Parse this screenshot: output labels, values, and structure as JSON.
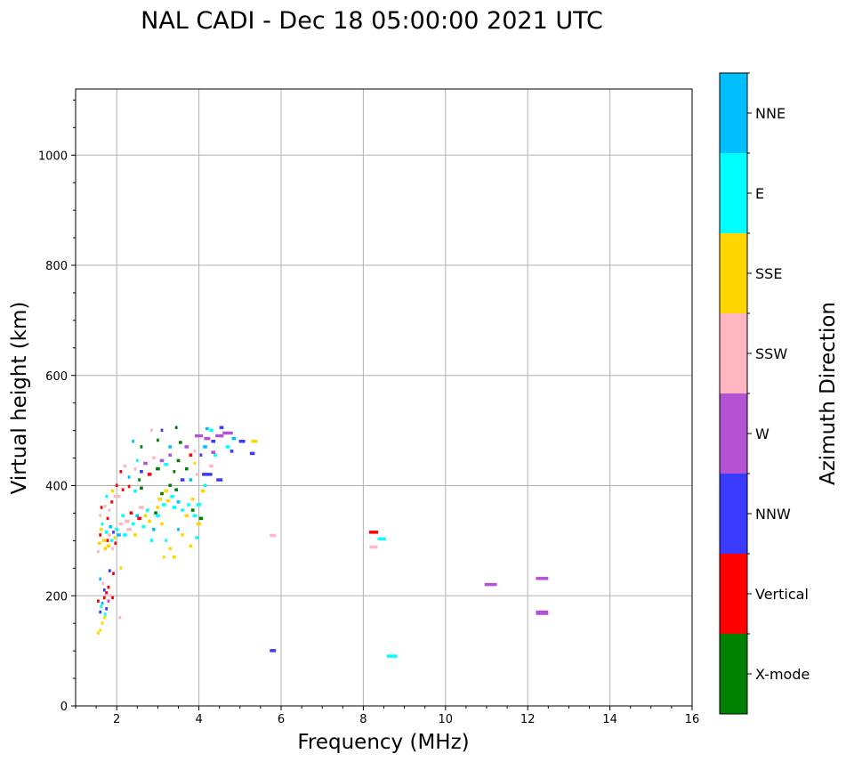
{
  "chart_data": {
    "type": "scatter",
    "title": "NAL CADI - Dec 18 05:00:00 2021 UTC",
    "xlabel": "Frequency (MHz)",
    "ylabel": "Virtual height (km)",
    "xlim": [
      1,
      16
    ],
    "ylim": [
      0,
      1120
    ],
    "xticks": [
      2,
      4,
      6,
      8,
      10,
      12,
      14,
      16
    ],
    "yticks": [
      0,
      200,
      400,
      600,
      800,
      1000
    ],
    "grid": true,
    "colorbar": {
      "label": "Azimuth Direction",
      "categories": [
        "X-mode",
        "Vertical",
        "NNW",
        "W",
        "SSW",
        "SSE",
        "E",
        "NNE"
      ],
      "colors": [
        "#008000",
        "#ff0000",
        "#3a3aff",
        "#b452d4",
        "#ffb6c1",
        "#ffd700",
        "#00ffff",
        "#00bfff"
      ]
    },
    "point_format": [
      "freq_MHz",
      "height_km",
      "direction_index",
      "width_MHz"
    ],
    "points": [
      [
        1.55,
        132,
        5,
        0.06
      ],
      [
        1.6,
        137,
        5,
        0.06
      ],
      [
        1.65,
        150,
        5,
        0.06
      ],
      [
        1.7,
        160,
        5,
        0.06
      ],
      [
        1.6,
        170,
        2,
        0.06
      ],
      [
        1.62,
        180,
        6,
        0.06
      ],
      [
        1.55,
        190,
        1,
        0.06
      ],
      [
        1.7,
        196,
        1,
        0.06
      ],
      [
        1.75,
        205,
        1,
        0.06
      ],
      [
        1.8,
        215,
        1,
        0.06
      ],
      [
        1.7,
        210,
        2,
        0.06
      ],
      [
        1.85,
        200,
        4,
        0.06
      ],
      [
        1.65,
        186,
        7,
        0.06
      ],
      [
        1.75,
        176,
        2,
        0.06
      ],
      [
        1.8,
        190,
        3,
        0.06
      ],
      [
        1.72,
        166,
        6,
        0.06
      ],
      [
        1.6,
        230,
        7,
        0.06
      ],
      [
        1.67,
        222,
        4,
        0.06
      ],
      [
        1.83,
        245,
        2,
        0.06
      ],
      [
        1.9,
        196,
        1,
        0.06
      ],
      [
        2.08,
        160,
        4,
        0.06
      ],
      [
        2.1,
        250,
        5,
        0.06
      ],
      [
        1.92,
        240,
        1,
        0.06
      ],
      [
        1.55,
        280,
        4,
        0.06
      ],
      [
        1.58,
        295,
        5,
        0.08
      ],
      [
        1.6,
        310,
        1,
        0.06
      ],
      [
        1.62,
        320,
        5,
        0.08
      ],
      [
        1.65,
        330,
        6,
        0.06
      ],
      [
        1.6,
        345,
        4,
        0.06
      ],
      [
        1.63,
        360,
        1,
        0.06
      ],
      [
        1.7,
        300,
        5,
        0.1
      ],
      [
        1.72,
        285,
        5,
        0.08
      ],
      [
        1.75,
        315,
        6,
        0.08
      ],
      [
        1.78,
        300,
        1,
        0.06
      ],
      [
        1.8,
        290,
        5,
        0.1
      ],
      [
        1.82,
        310,
        4,
        0.08
      ],
      [
        1.85,
        325,
        7,
        0.08
      ],
      [
        1.88,
        300,
        6,
        0.08
      ],
      [
        1.9,
        285,
        4,
        0.06
      ],
      [
        1.92,
        315,
        2,
        0.06
      ],
      [
        1.95,
        305,
        5,
        0.06
      ],
      [
        1.97,
        295,
        1,
        0.06
      ],
      [
        2.0,
        320,
        6,
        0.08
      ],
      [
        1.78,
        340,
        1,
        0.06
      ],
      [
        1.82,
        355,
        4,
        0.06
      ],
      [
        1.88,
        370,
        1,
        0.06
      ],
      [
        1.9,
        390,
        5,
        0.08
      ],
      [
        1.95,
        380,
        4,
        0.06
      ],
      [
        1.75,
        380,
        6,
        0.06
      ],
      [
        1.72,
        362,
        4,
        0.06
      ],
      [
        2.05,
        310,
        7,
        0.1
      ],
      [
        2.1,
        330,
        4,
        0.1
      ],
      [
        2.15,
        345,
        6,
        0.08
      ],
      [
        2.2,
        310,
        6,
        0.1
      ],
      [
        2.25,
        335,
        4,
        0.12
      ],
      [
        2.3,
        320,
        4,
        0.12
      ],
      [
        2.35,
        350,
        1,
        0.08
      ],
      [
        2.4,
        330,
        6,
        0.08
      ],
      [
        2.45,
        310,
        5,
        0.08
      ],
      [
        2.5,
        345,
        7,
        0.08
      ],
      [
        2.55,
        340,
        1,
        0.1
      ],
      [
        2.6,
        360,
        4,
        0.12
      ],
      [
        2.65,
        325,
        6,
        0.08
      ],
      [
        2.7,
        345,
        5,
        0.08
      ],
      [
        2.75,
        355,
        6,
        0.08
      ],
      [
        2.8,
        335,
        5,
        0.08
      ],
      [
        2.85,
        300,
        6,
        0.08
      ],
      [
        2.9,
        320,
        7,
        0.08
      ],
      [
        2.95,
        350,
        0,
        0.08
      ],
      [
        3.0,
        360,
        5,
        0.08
      ],
      [
        2.0,
        400,
        1,
        0.06
      ],
      [
        2.05,
        380,
        4,
        0.08
      ],
      [
        2.15,
        392,
        1,
        0.06
      ],
      [
        2.3,
        398,
        1,
        0.06
      ],
      [
        2.45,
        390,
        6,
        0.08
      ],
      [
        2.6,
        395,
        0,
        0.08
      ],
      [
        3.05,
        375,
        5,
        0.1
      ],
      [
        3.1,
        385,
        0,
        0.08
      ],
      [
        3.15,
        365,
        6,
        0.1
      ],
      [
        3.2,
        390,
        5,
        0.1
      ],
      [
        3.25,
        372,
        5,
        0.1
      ],
      [
        3.3,
        400,
        0,
        0.08
      ],
      [
        3.35,
        380,
        6,
        0.1
      ],
      [
        3.4,
        360,
        6,
        0.1
      ],
      [
        3.45,
        392,
        0,
        0.08
      ],
      [
        3.5,
        370,
        7,
        0.08
      ],
      [
        3.6,
        355,
        6,
        0.08
      ],
      [
        3.7,
        345,
        5,
        0.1
      ],
      [
        3.75,
        365,
        6,
        0.08
      ],
      [
        3.85,
        355,
        0,
        0.08
      ],
      [
        3.9,
        345,
        6,
        0.1
      ],
      [
        4.0,
        330,
        5,
        0.12
      ],
      [
        4.05,
        340,
        0,
        0.1
      ],
      [
        3.1,
        330,
        5,
        0.08
      ],
      [
        3.2,
        300,
        6,
        0.06
      ],
      [
        3.3,
        285,
        5,
        0.08
      ],
      [
        3.4,
        270,
        5,
        0.08
      ],
      [
        3.6,
        310,
        5,
        0.08
      ],
      [
        3.8,
        290,
        5,
        0.08
      ],
      [
        3.15,
        270,
        5,
        0.06
      ],
      [
        3.0,
        345,
        6,
        0.1
      ],
      [
        3.5,
        320,
        7,
        0.06
      ],
      [
        3.95,
        305,
        6,
        0.08
      ],
      [
        4.0,
        365,
        6,
        0.12
      ],
      [
        3.85,
        375,
        5,
        0.08
      ],
      [
        2.1,
        425,
        1,
        0.06
      ],
      [
        2.2,
        435,
        4,
        0.08
      ],
      [
        2.3,
        415,
        7,
        0.06
      ],
      [
        2.45,
        430,
        4,
        0.06
      ],
      [
        2.5,
        445,
        6,
        0.06
      ],
      [
        2.55,
        410,
        0,
        0.06
      ],
      [
        2.6,
        425,
        2,
        0.08
      ],
      [
        2.7,
        440,
        3,
        0.1
      ],
      [
        2.8,
        420,
        1,
        0.1
      ],
      [
        2.9,
        450,
        4,
        0.08
      ],
      [
        3.0,
        430,
        0,
        0.1
      ],
      [
        3.1,
        445,
        3,
        0.1
      ],
      [
        3.2,
        438,
        6,
        0.1
      ],
      [
        3.3,
        455,
        3,
        0.08
      ],
      [
        3.4,
        425,
        0,
        0.06
      ],
      [
        3.5,
        445,
        0,
        0.08
      ],
      [
        3.6,
        410,
        2,
        0.1
      ],
      [
        3.7,
        430,
        0,
        0.08
      ],
      [
        3.8,
        410,
        7,
        0.08
      ],
      [
        3.9,
        440,
        5,
        0.06
      ],
      [
        3.95,
        420,
        4,
        0.06
      ],
      [
        2.4,
        480,
        7,
        0.06
      ],
      [
        2.6,
        470,
        0,
        0.06
      ],
      [
        2.85,
        500,
        4,
        0.06
      ],
      [
        3.1,
        500,
        2,
        0.06
      ],
      [
        3.0,
        482,
        0,
        0.06
      ],
      [
        3.3,
        470,
        7,
        0.08
      ],
      [
        3.45,
        505,
        0,
        0.06
      ],
      [
        3.55,
        478,
        0,
        0.08
      ],
      [
        3.7,
        470,
        3,
        0.1
      ],
      [
        3.8,
        455,
        1,
        0.08
      ],
      [
        3.9,
        462,
        4,
        0.06
      ],
      [
        4.0,
        490,
        3,
        0.2
      ],
      [
        4.05,
        455,
        2,
        0.06
      ],
      [
        4.15,
        470,
        7,
        0.1
      ],
      [
        4.2,
        485,
        3,
        0.15
      ],
      [
        4.3,
        500,
        6,
        0.1
      ],
      [
        4.35,
        480,
        2,
        0.1
      ],
      [
        4.5,
        490,
        3,
        0.2
      ],
      [
        4.55,
        505,
        2,
        0.1
      ],
      [
        4.7,
        495,
        3,
        0.25
      ],
      [
        4.7,
        470,
        6,
        0.1
      ],
      [
        4.85,
        485,
        7,
        0.1
      ],
      [
        5.05,
        480,
        2,
        0.15
      ],
      [
        5.35,
        480,
        5,
        0.15
      ],
      [
        5.3,
        458,
        2,
        0.12
      ],
      [
        4.8,
        462,
        2,
        0.08
      ],
      [
        4.4,
        455,
        6,
        0.08
      ],
      [
        4.5,
        410,
        2,
        0.15
      ],
      [
        4.2,
        420,
        2,
        0.25
      ],
      [
        4.15,
        400,
        6,
        0.08
      ],
      [
        4.1,
        390,
        5,
        0.1
      ],
      [
        4.3,
        435,
        4,
        0.1
      ],
      [
        4.35,
        460,
        3,
        0.1
      ],
      [
        4.2,
        503,
        7,
        0.08
      ],
      [
        5.8,
        309,
        4,
        0.15
      ],
      [
        5.8,
        100,
        2,
        0.15
      ],
      [
        8.25,
        315,
        1,
        0.22
      ],
      [
        8.45,
        303,
        6,
        0.2
      ],
      [
        8.25,
        288,
        4,
        0.2
      ],
      [
        8.7,
        90,
        6,
        0.25
      ],
      [
        11.1,
        220,
        3,
        0.3
      ],
      [
        12.35,
        231,
        3,
        0.3
      ],
      [
        12.35,
        170,
        3,
        0.3
      ]
    ]
  }
}
